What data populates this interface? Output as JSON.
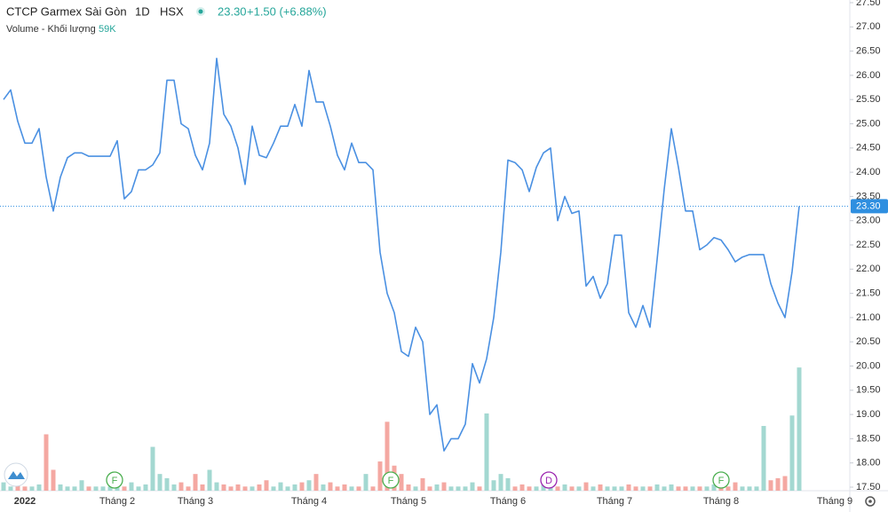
{
  "header": {
    "name": "CTCP Garmex Sài Gòn",
    "interval": "1D",
    "exchange": "HSX",
    "price": "23.30",
    "change": "+1.50 (+6.88%)",
    "volume_title": "Volume - Khối lượng",
    "volume_value": "59K"
  },
  "events": [
    "F",
    "F",
    "D",
    "F"
  ],
  "chart_data": {
    "type": "line",
    "categories": [
      null,
      null,
      null,
      "2022",
      null,
      null,
      null,
      null,
      null,
      null,
      null,
      null,
      null,
      null,
      null,
      null,
      "Tháng 2",
      null,
      null,
      null,
      null,
      null,
      null,
      null,
      null,
      null,
      null,
      "Tháng 3",
      null,
      null,
      null,
      null,
      null,
      null,
      null,
      null,
      null,
      null,
      null,
      null,
      null,
      null,
      null,
      "Tháng 4",
      null,
      null,
      null,
      null,
      null,
      null,
      null,
      null,
      null,
      null,
      null,
      null,
      null,
      "Tháng 5",
      null,
      null,
      null,
      null,
      null,
      null,
      null,
      null,
      null,
      null,
      null,
      null,
      null,
      "Tháng 6",
      null,
      null,
      null,
      null,
      null,
      null,
      null,
      null,
      null,
      null,
      null,
      null,
      null,
      null,
      "Tháng 7",
      null,
      null,
      null,
      null,
      null,
      null,
      null,
      null,
      null,
      null,
      null,
      null,
      null,
      null,
      "Tháng 8",
      null,
      null,
      null,
      null,
      null,
      null,
      null,
      null,
      null,
      null,
      null,
      null,
      null,
      null,
      null,
      "Tháng 9"
    ],
    "series": [
      {
        "color": "#4a90e2",
        "values": [
          25.5,
          25.7,
          25.05,
          24.6,
          24.6,
          24.9,
          23.9,
          23.2,
          23.9,
          24.3,
          24.4,
          24.4,
          24.33,
          24.33,
          24.33,
          24.33,
          24.65,
          23.45,
          23.6,
          24.05,
          24.05,
          24.15,
          24.4,
          25.9,
          25.9,
          25.0,
          24.9,
          24.35,
          24.05,
          24.6,
          26.35,
          25.2,
          24.95,
          24.5,
          23.75,
          24.95,
          24.35,
          24.3,
          24.6,
          24.95,
          24.95,
          25.4,
          24.95,
          26.1,
          25.45,
          25.45,
          24.95,
          24.35,
          24.05,
          24.6,
          24.2,
          24.2,
          24.05,
          22.35,
          21.5,
          21.1,
          20.3,
          20.2,
          20.8,
          20.5,
          19.0,
          19.2,
          18.25,
          18.5,
          18.5,
          18.8,
          20.05,
          19.65,
          20.15,
          21.0,
          22.35,
          24.25,
          24.2,
          24.05,
          23.6,
          24.1,
          24.4,
          24.5,
          23.0,
          23.5,
          23.15,
          23.2,
          21.65,
          21.85,
          21.4,
          21.7,
          22.7,
          22.7,
          21.1,
          20.8,
          21.25,
          20.8,
          22.2,
          23.65,
          24.9,
          24.1,
          23.2,
          23.2,
          22.4,
          22.5,
          22.65,
          22.6,
          22.4,
          22.15,
          22.25,
          22.3,
          22.3,
          22.3,
          21.7,
          21.3,
          21.0,
          21.95,
          23.3,
          null,
          null,
          null,
          null,
          null
        ]
      }
    ],
    "volume": {
      "color_up": "#a3d8d1",
      "color_down": "#f4a8a2",
      "ylim": [
        0,
        116
      ],
      "values": [
        4,
        2,
        3,
        2,
        2,
        3,
        27,
        10,
        3,
        2,
        2,
        5,
        2,
        2,
        2,
        2,
        3,
        2,
        4,
        2,
        3,
        21,
        8,
        6,
        3,
        4,
        2,
        8,
        3,
        10,
        4,
        3,
        2,
        3,
        2,
        2,
        3,
        5,
        2,
        4,
        2,
        3,
        4,
        5,
        8,
        3,
        4,
        2,
        3,
        2,
        2,
        8,
        2,
        14,
        33,
        12,
        8,
        3,
        2,
        6,
        2,
        3,
        4,
        2,
        2,
        2,
        4,
        2,
        37,
        5,
        8,
        6,
        2,
        3,
        2,
        2,
        3,
        2,
        2,
        3,
        2,
        2,
        4,
        2,
        3,
        2,
        2,
        2,
        3,
        2,
        2,
        2,
        3,
        2,
        3,
        2,
        2,
        2,
        2,
        2,
        3,
        2,
        2,
        4,
        2,
        2,
        2,
        31,
        5,
        6,
        7,
        36,
        59,
        null,
        null,
        null,
        null,
        null
      ]
    },
    "price_tag": "23.30",
    "price_tag_color": "#2f8fe0",
    "ylim": [
      17.5,
      27.5
    ],
    "yticks": [
      {
        "value": 17.5,
        "label": "17.50"
      },
      {
        "value": 18,
        "label": "18.00"
      },
      {
        "value": 18.5,
        "label": "18.50"
      },
      {
        "value": 19,
        "label": "19.00"
      },
      {
        "value": 19.5,
        "label": "19.50"
      },
      {
        "value": 20,
        "label": "20.00"
      },
      {
        "value": 20.5,
        "label": "20.50"
      },
      {
        "value": 21,
        "label": "21.00"
      },
      {
        "value": 21.5,
        "label": "21.50"
      },
      {
        "value": 22,
        "label": "22.00"
      },
      {
        "value": 22.5,
        "label": "22.50"
      },
      {
        "value": 23,
        "label": "23.00"
      },
      {
        "value": 23.5,
        "label": "23.50"
      },
      {
        "value": 24,
        "label": "24.00"
      },
      {
        "value": 24.5,
        "label": "24.50"
      },
      {
        "value": 25,
        "label": "25.00"
      },
      {
        "value": 25.5,
        "label": "25.50"
      },
      {
        "value": 26,
        "label": "26.00"
      },
      {
        "value": 26.5,
        "label": "26.50"
      },
      {
        "value": 27,
        "label": "27.00"
      },
      {
        "value": 27.5,
        "label": "27.50"
      }
    ],
    "grid": false
  }
}
